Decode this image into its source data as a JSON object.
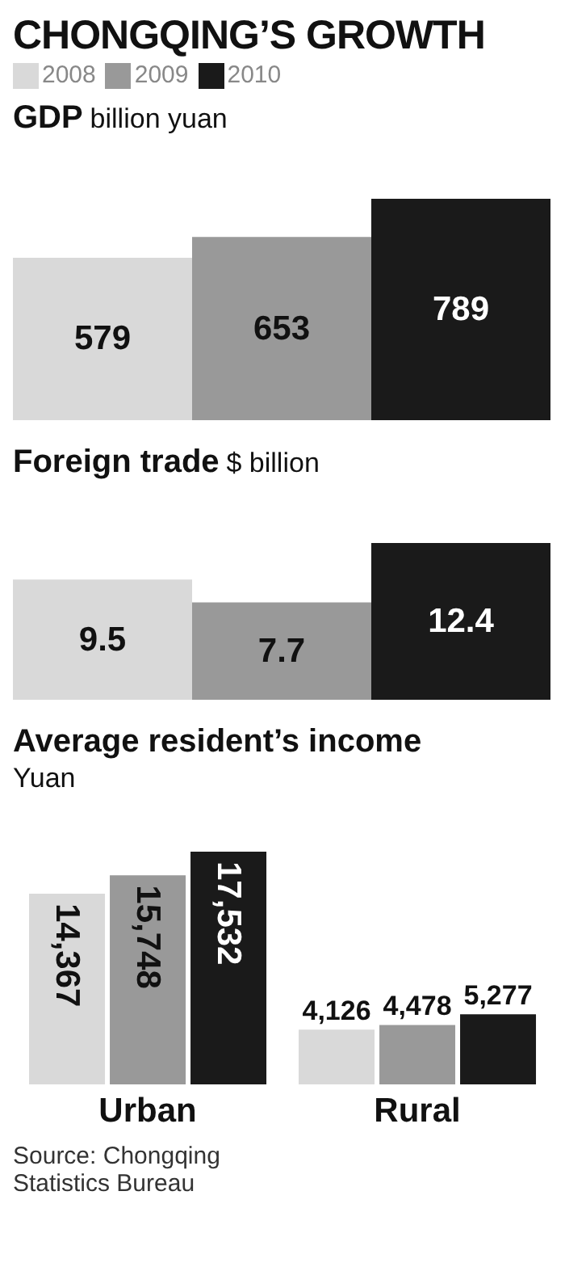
{
  "chart_data": [
    {
      "type": "bar",
      "title": "CHONGQING’S GROWTH",
      "subtitle": "GDP",
      "ylabel": "billion yuan",
      "categories": [
        null
      ],
      "legend": "top",
      "tick_labels": false,
      "data_labels": true,
      "series": [
        {
          "name": "2008",
          "color": "#d9d9d9",
          "values": [
            579
          ]
        },
        {
          "name": "2009",
          "color": "#999999",
          "values": [
            653
          ]
        },
        {
          "name": "2010",
          "color": "#1a1a1a",
          "values": [
            789
          ]
        }
      ]
    },
    {
      "type": "bar",
      "title": "Foreign trade",
      "ylabel": "$ billion",
      "categories": [
        null
      ],
      "tick_labels": false,
      "data_labels": true,
      "series": [
        {
          "color": "#d9d9d9",
          "values": [
            9.5
          ]
        },
        {
          "color": "#999999",
          "values": [
            7.7
          ]
        },
        {
          "color": "#1a1a1a",
          "values": [
            12.4
          ]
        }
      ]
    },
    {
      "type": "bar",
      "title": "Average resident’s income",
      "ylabel": "Yuan",
      "categories": [
        "Urban",
        "Rural"
      ],
      "tick_labels": "x",
      "series": [
        {
          "color": "#d9d9d9",
          "values": [
            14367,
            4126
          ],
          "value_labels": [
            "14,367",
            "4,126"
          ]
        },
        {
          "color": "#999999",
          "values": [
            15748,
            4478
          ],
          "value_labels": [
            "15,748",
            "4,478"
          ]
        },
        {
          "color": "#1a1a1a",
          "values": [
            17532,
            5277
          ],
          "value_labels": [
            "17,532",
            "5,277"
          ]
        }
      ],
      "annotations": [
        "Source: Chongqing Statistics Bureau"
      ]
    }
  ]
}
